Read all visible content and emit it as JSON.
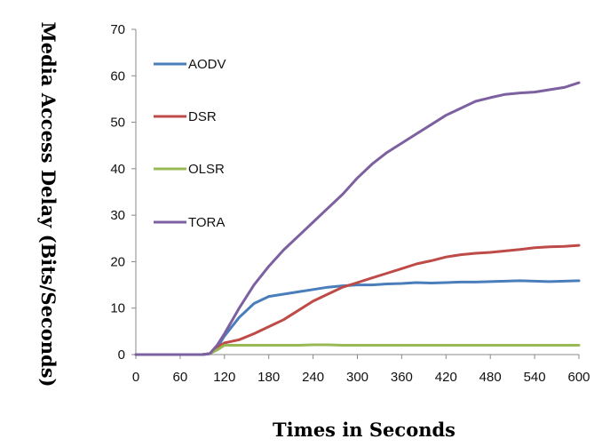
{
  "chart_data": {
    "type": "line",
    "title": "",
    "xlabel": "Times in Seconds",
    "ylabel": "Media Access Delay (Bits/Seconds)",
    "xlim": [
      0,
      600
    ],
    "ylim": [
      0,
      70
    ],
    "xticks": [
      0,
      60,
      120,
      180,
      240,
      300,
      360,
      420,
      480,
      540,
      600
    ],
    "yticks": [
      0,
      10,
      20,
      30,
      40,
      50,
      60,
      70
    ],
    "grid": false,
    "legend_position": "left inside plot",
    "x": [
      0,
      30,
      60,
      90,
      100,
      110,
      120,
      140,
      160,
      180,
      200,
      220,
      240,
      260,
      280,
      300,
      320,
      340,
      360,
      380,
      400,
      420,
      440,
      460,
      480,
      500,
      520,
      540,
      560,
      580,
      600
    ],
    "series": [
      {
        "name": "AODV",
        "color": "#4a7ebb",
        "values": [
          0,
          0,
          0,
          0,
          0.2,
          1.5,
          4,
          8,
          11,
          12.5,
          13,
          13.5,
          14,
          14.5,
          14.8,
          15,
          15,
          15.2,
          15.3,
          15.5,
          15.4,
          15.5,
          15.6,
          15.6,
          15.7,
          15.8,
          15.9,
          15.8,
          15.7,
          15.8,
          15.9
        ]
      },
      {
        "name": "DSR",
        "color": "#be4b48",
        "values": [
          0,
          0,
          0,
          0,
          0.2,
          1.5,
          2.5,
          3.2,
          4.5,
          6,
          7.5,
          9.5,
          11.5,
          13,
          14.5,
          15.5,
          16.5,
          17.5,
          18.5,
          19.5,
          20.2,
          21,
          21.5,
          21.8,
          22,
          22.3,
          22.6,
          23,
          23.2,
          23.3,
          23.5
        ]
      },
      {
        "name": "OLSR",
        "color": "#98b954",
        "values": [
          0,
          0,
          0,
          0,
          0.2,
          1,
          2,
          2,
          2,
          2,
          2,
          2,
          2.1,
          2.1,
          2,
          2,
          2,
          2,
          2,
          2,
          2,
          2,
          2,
          2,
          2,
          2,
          2,
          2,
          2,
          2,
          2
        ]
      },
      {
        "name": "TORA",
        "color": "#7d60a0",
        "values": [
          0,
          0,
          0,
          0,
          0.2,
          2,
          4.5,
          10,
          15,
          19,
          22.5,
          25.5,
          28.5,
          31.5,
          34.5,
          38,
          41,
          43.5,
          45.5,
          47.5,
          49.5,
          51.5,
          53,
          54.5,
          55.3,
          56,
          56.3,
          56.5,
          57,
          57.5,
          58.5
        ]
      }
    ]
  }
}
